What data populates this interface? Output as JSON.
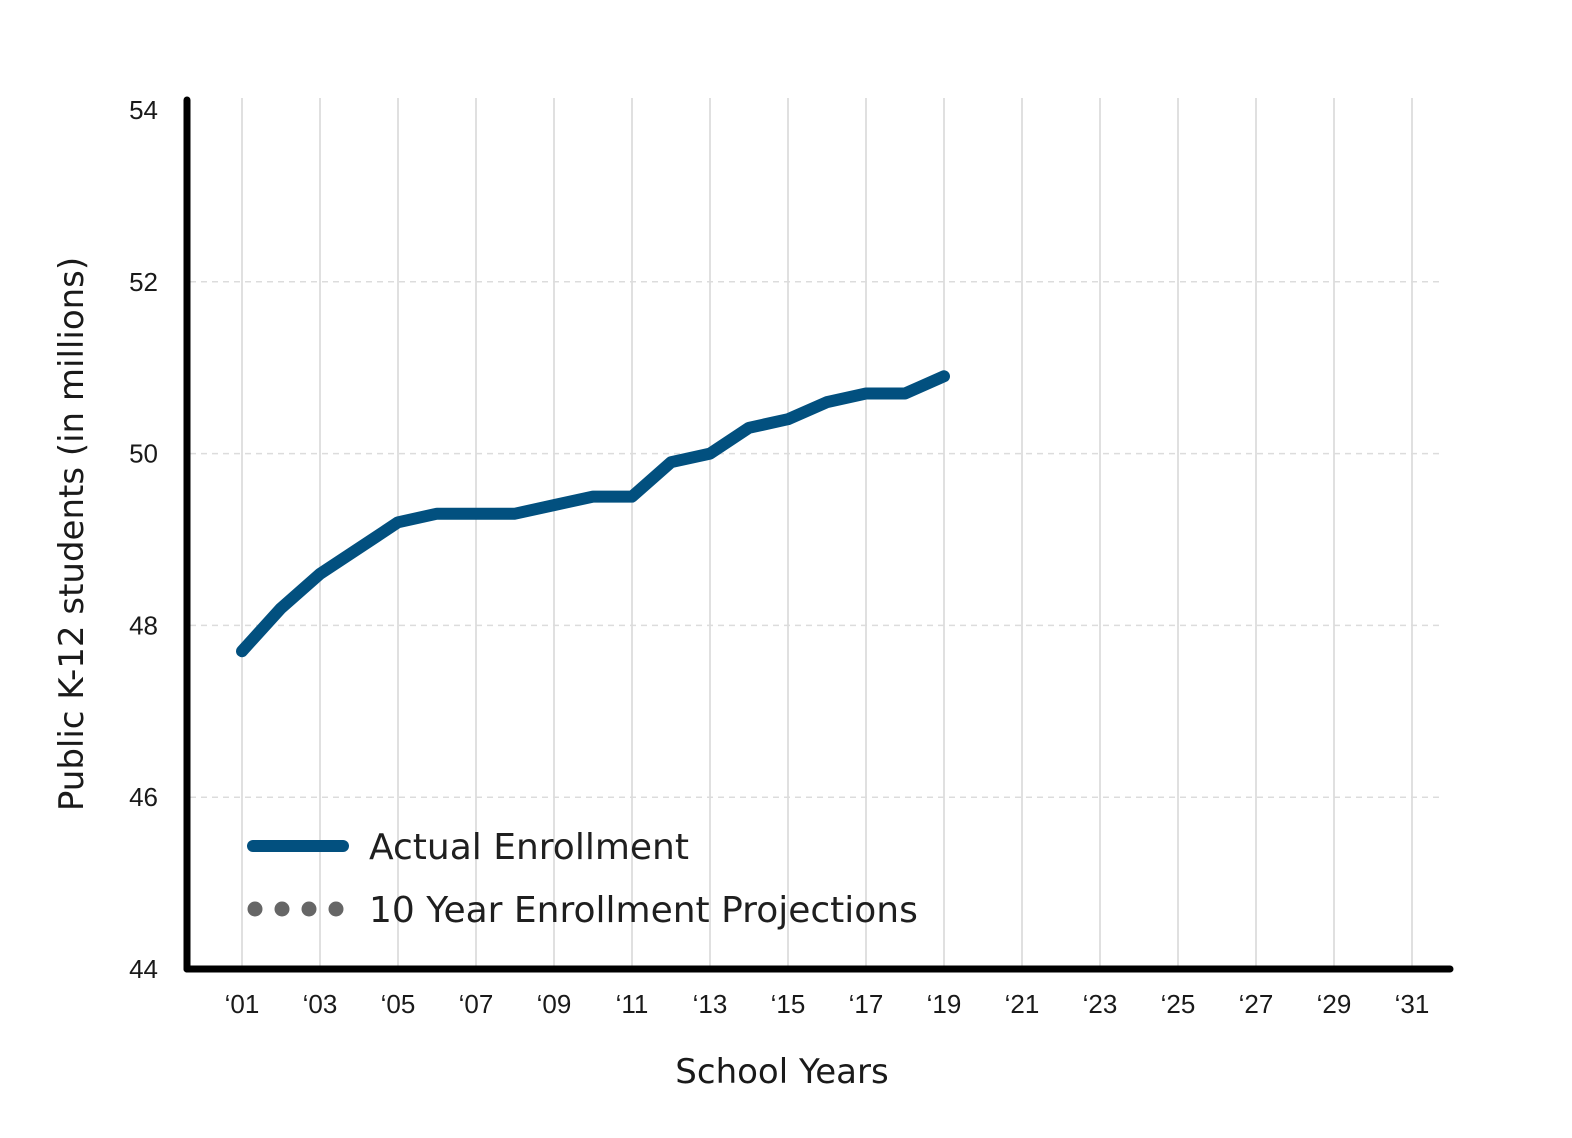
{
  "chart_data": {
    "type": "line",
    "xlabel": "School Years",
    "ylabel": "Public K-12 students (in millions)",
    "ylim": [
      44,
      54
    ],
    "xlim": [
      2001,
      2031
    ],
    "y_ticks": [
      44,
      46,
      48,
      50,
      52,
      54
    ],
    "x_ticks": [
      2001,
      2003,
      2005,
      2007,
      2009,
      2011,
      2013,
      2015,
      2017,
      2019,
      2021,
      2023,
      2025,
      2027,
      2029,
      2031
    ],
    "x_tick_labels": [
      "‘01",
      "‘03",
      "‘05",
      "‘07",
      "‘09",
      "‘11",
      "‘13",
      "‘15",
      "‘17",
      "‘19",
      "‘21",
      "‘23",
      "‘25",
      "‘27",
      "‘29",
      "‘31"
    ],
    "grid": true,
    "legend_position": "bottom-left",
    "series": [
      {
        "name": "Actual Enrollment",
        "style": "solid",
        "color": "#02507f",
        "x": [
          2001,
          2002,
          2003,
          2004,
          2005,
          2006,
          2007,
          2008,
          2009,
          2010,
          2011,
          2012,
          2013,
          2014,
          2015,
          2016,
          2017,
          2018,
          2019
        ],
        "values": [
          47.7,
          48.2,
          48.6,
          48.9,
          49.2,
          49.3,
          49.3,
          49.3,
          49.4,
          49.5,
          49.5,
          49.9,
          50.0,
          50.3,
          50.4,
          50.6,
          50.7,
          50.7,
          50.9
        ]
      },
      {
        "name": "10 Year Enrollment Projections",
        "style": "dotted",
        "color": "#666666",
        "x": [],
        "values": []
      }
    ]
  }
}
